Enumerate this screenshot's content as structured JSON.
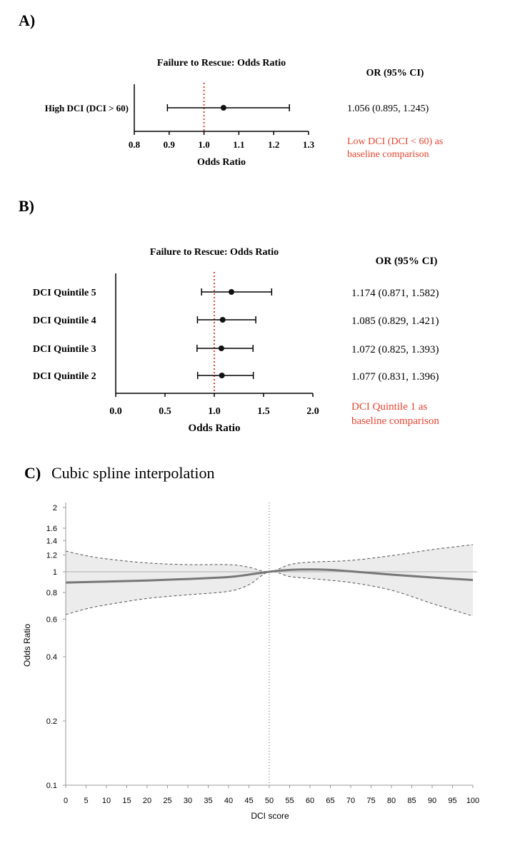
{
  "colors": {
    "baseline": "#e8432f",
    "point": "#111111",
    "spline": "#777777",
    "band": "#ececec",
    "bandEdge": "#555555",
    "refline": "#bbbbbb"
  },
  "chart_data": [
    {
      "panel_label": "A)",
      "type": "forest",
      "title": "Failure to Rescue: Odds Ratio",
      "xlabel": "Odds Ratio",
      "xlim": [
        0.8,
        1.3
      ],
      "ticks": [
        0.8,
        0.9,
        1.0,
        1.1,
        1.2,
        1.3
      ],
      "tick_labels": [
        "0.8",
        "0.9",
        "1.0",
        "1.1",
        "1.2",
        "1.3"
      ],
      "reference_line": 1.0,
      "ci_header": "OR (95% CI)",
      "rows": [
        {
          "label": "High DCI (DCI > 60)",
          "or": 1.056,
          "lo": 0.895,
          "hi": 1.245,
          "text": "1.056 (0.895, 1.245)"
        }
      ],
      "note": "Low DCI (DCI < 60) as baseline comparison"
    },
    {
      "panel_label": "B)",
      "type": "forest",
      "title": "Failure to Rescue: Odds Ratio",
      "xlabel": "Odds Ratio",
      "xlim": [
        0.0,
        2.0
      ],
      "ticks": [
        0.0,
        0.5,
        1.0,
        1.5,
        2.0
      ],
      "tick_labels": [
        "0.0",
        "0.5",
        "1.0",
        "1.5",
        "2.0"
      ],
      "reference_line": 1.0,
      "ci_header": "OR (95% CI)",
      "rows": [
        {
          "label": "DCI Quintile 5",
          "or": 1.174,
          "lo": 0.871,
          "hi": 1.582,
          "text": "1.174 (0.871, 1.582)"
        },
        {
          "label": "DCI Quintile 4",
          "or": 1.085,
          "lo": 0.829,
          "hi": 1.421,
          "text": "1.085 (0.829, 1.421)"
        },
        {
          "label": "DCI Quintile 3",
          "or": 1.072,
          "lo": 0.825,
          "hi": 1.393,
          "text": "1.072 (0.825, 1.393)"
        },
        {
          "label": "DCI Quintile 2",
          "or": 1.077,
          "lo": 0.831,
          "hi": 1.396,
          "text": "1.077 (0.831, 1.396)"
        }
      ],
      "note": "DCI Quintile 1 as baseline comparison"
    },
    {
      "panel_label": "C)",
      "type": "line",
      "title": "Cubic spline interpolation",
      "xlabel": "DCI score",
      "ylabel": "Odds Ratio",
      "xlim": [
        0,
        100
      ],
      "ylim": [
        0.1,
        2
      ],
      "yscale": "log",
      "xticks": [
        0,
        5,
        10,
        15,
        20,
        25,
        30,
        35,
        40,
        45,
        50,
        55,
        60,
        65,
        70,
        75,
        80,
        85,
        90,
        95,
        100
      ],
      "xtick_labels": [
        "0",
        "5",
        "10",
        "15",
        "20",
        "25",
        "30",
        "35",
        "40",
        "45",
        "50",
        "55",
        "60",
        "65",
        "70",
        "75",
        "80",
        "85",
        "90",
        "95",
        "100"
      ],
      "yticks": [
        0.1,
        0.2,
        0.4,
        0.6,
        0.8,
        1,
        1.2,
        1.4,
        1.6,
        2
      ],
      "ytick_labels": [
        "0.1",
        "0.2",
        "0.4",
        "0.6",
        "0.8",
        "1",
        "1.2",
        "1.4",
        "1.6",
        "2"
      ],
      "reference_x": 50,
      "reference_y": 1,
      "series": [
        {
          "name": "estimate",
          "x": [
            0,
            10,
            20,
            30,
            40,
            45,
            50,
            55,
            60,
            65,
            70,
            80,
            90,
            100
          ],
          "y": [
            0.89,
            0.9,
            0.91,
            0.925,
            0.945,
            0.97,
            1.0,
            1.02,
            1.025,
            1.02,
            1.005,
            0.97,
            0.94,
            0.915
          ]
        },
        {
          "name": "upper",
          "x": [
            0,
            5,
            10,
            20,
            30,
            40,
            45,
            50,
            55,
            60,
            70,
            80,
            90,
            100
          ],
          "y": [
            1.25,
            1.19,
            1.15,
            1.1,
            1.08,
            1.08,
            1.05,
            1.0,
            1.08,
            1.11,
            1.13,
            1.19,
            1.27,
            1.34
          ]
        },
        {
          "name": "lower",
          "x": [
            0,
            5,
            10,
            20,
            30,
            40,
            45,
            50,
            55,
            60,
            70,
            80,
            90,
            100
          ],
          "y": [
            0.63,
            0.67,
            0.7,
            0.75,
            0.78,
            0.81,
            0.87,
            1.0,
            0.95,
            0.93,
            0.89,
            0.82,
            0.71,
            0.62
          ]
        }
      ]
    }
  ]
}
